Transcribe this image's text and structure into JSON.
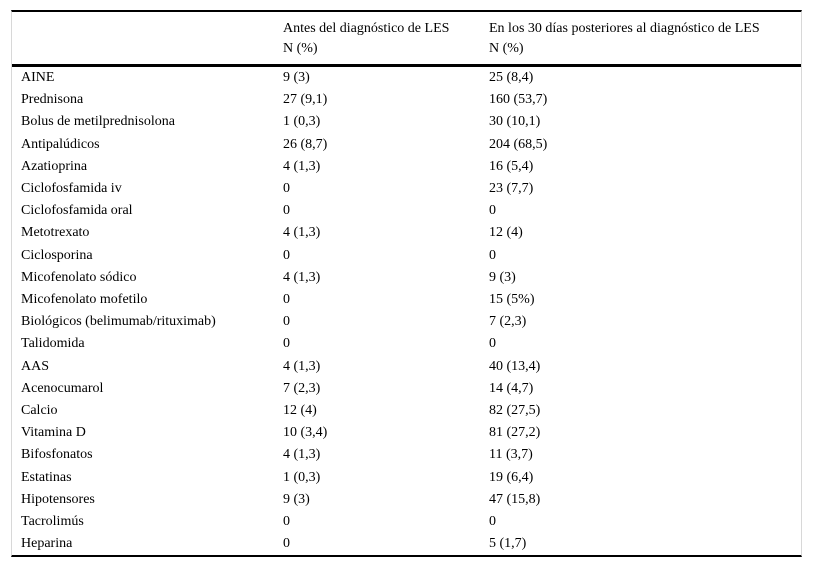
{
  "table": {
    "columns": [
      {
        "title": "",
        "subtitle": ""
      },
      {
        "title": "Antes del diagnóstico de LES",
        "subtitle": "N (%)"
      },
      {
        "title": "En los 30 días posteriores al diagnóstico de LES",
        "subtitle": "N (%)"
      }
    ],
    "rows": [
      {
        "label": "AINE",
        "before": "9 (3)",
        "after": "25 (8,4)"
      },
      {
        "label": "Prednisona",
        "before": "27 (9,1)",
        "after": "160 (53,7)"
      },
      {
        "label": "Bolus de metilprednisolona",
        "before": "1 (0,3)",
        "after": "30 (10,1)"
      },
      {
        "label": "Antipalúdicos",
        "before": "26 (8,7)",
        "after": "204 (68,5)"
      },
      {
        "label": "Azatioprina",
        "before": "4 (1,3)",
        "after": "16 (5,4)"
      },
      {
        "label": "Ciclofosfamida iv",
        "before": "0",
        "after": "23 (7,7)"
      },
      {
        "label": "Ciclofosfamida oral",
        "before": "0",
        "after": "0"
      },
      {
        "label": "Metotrexato",
        "before": "4 (1,3)",
        "after": "12 (4)"
      },
      {
        "label": "Ciclosporina",
        "before": "0",
        "after": "0"
      },
      {
        "label": "Micofenolato sódico",
        "before": "4 (1,3)",
        "after": "9 (3)"
      },
      {
        "label": "Micofenolato mofetilo",
        "before": "0",
        "after": "15 (5%)"
      },
      {
        "label": "Biológicos (belimumab/rituximab)",
        "before": "0",
        "after": "7 (2,3)"
      },
      {
        "label": "Talidomida",
        "before": "0",
        "after": "0"
      },
      {
        "label": "AAS",
        "before": "4 (1,3)",
        "after": "40 (13,4)"
      },
      {
        "label": "Acenocumarol",
        "before": "7 (2,3)",
        "after": "14 (4,7)"
      },
      {
        "label": "Calcio",
        "before": "12 (4)",
        "after": "82 (27,5)"
      },
      {
        "label": "Vitamina D",
        "before": "10 (3,4)",
        "after": "81 (27,2)"
      },
      {
        "label": "Bifosfonatos",
        "before": "4 (1,3)",
        "after": "11 (3,7)"
      },
      {
        "label": "Estatinas",
        "before": "1 (0,3)",
        "after": "19 (6,4)"
      },
      {
        "label": "Hipotensores",
        "before": "9 (3)",
        "after": "47 (15,8)"
      },
      {
        "label": "Tacrolimús",
        "before": "0",
        "after": "0"
      },
      {
        "label": "Heparina",
        "before": "0",
        "after": "5 (1,7)"
      }
    ]
  }
}
